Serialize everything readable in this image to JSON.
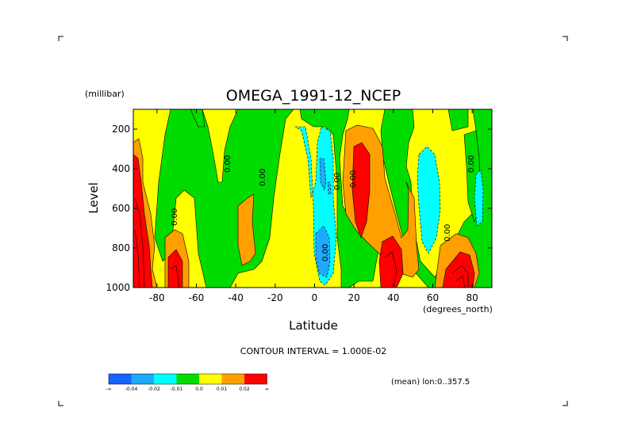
{
  "chart_data": {
    "type": "heatmap",
    "title": "OMEGA_1991-12_NCEP",
    "xlabel": "Latitude",
    "x_units": "(degrees_north)",
    "ylabel": "Level",
    "y_units": "(millibar)",
    "xlim": [
      -92,
      90
    ],
    "ylim": [
      1000,
      100
    ],
    "x_ticks": [
      -80,
      -60,
      -40,
      -20,
      0,
      20,
      40,
      60,
      80
    ],
    "x_tick_labels": [
      "-80",
      "-60",
      "-40",
      "-20",
      "0",
      "20",
      "40",
      "60",
      "80"
    ],
    "y_ticks": [
      200,
      400,
      600,
      800,
      1000
    ],
    "y_tick_labels": [
      "200",
      "400",
      "600",
      "800",
      "1000"
    ],
    "contour_interval_text": "CONTOUR INTERVAL = 1.000E-02",
    "contour_labels": [
      "0.00",
      "0.00",
      "0.00",
      "0.00",
      "0.00",
      "0.00",
      "0.00",
      "0.00"
    ],
    "legend": {
      "colors": [
        "#1464ff",
        "#1eaaff",
        "#00ffff",
        "#00dc00",
        "#ffff00",
        "#ffa000",
        "#ff0000"
      ],
      "labels": [
        "-∞",
        "-0.04",
        "-0.02",
        "-0.01",
        "0.0",
        "0.01",
        "0.02",
        "∞"
      ]
    },
    "annotation": "(mean) lon:0..357.5",
    "grid": false
  }
}
